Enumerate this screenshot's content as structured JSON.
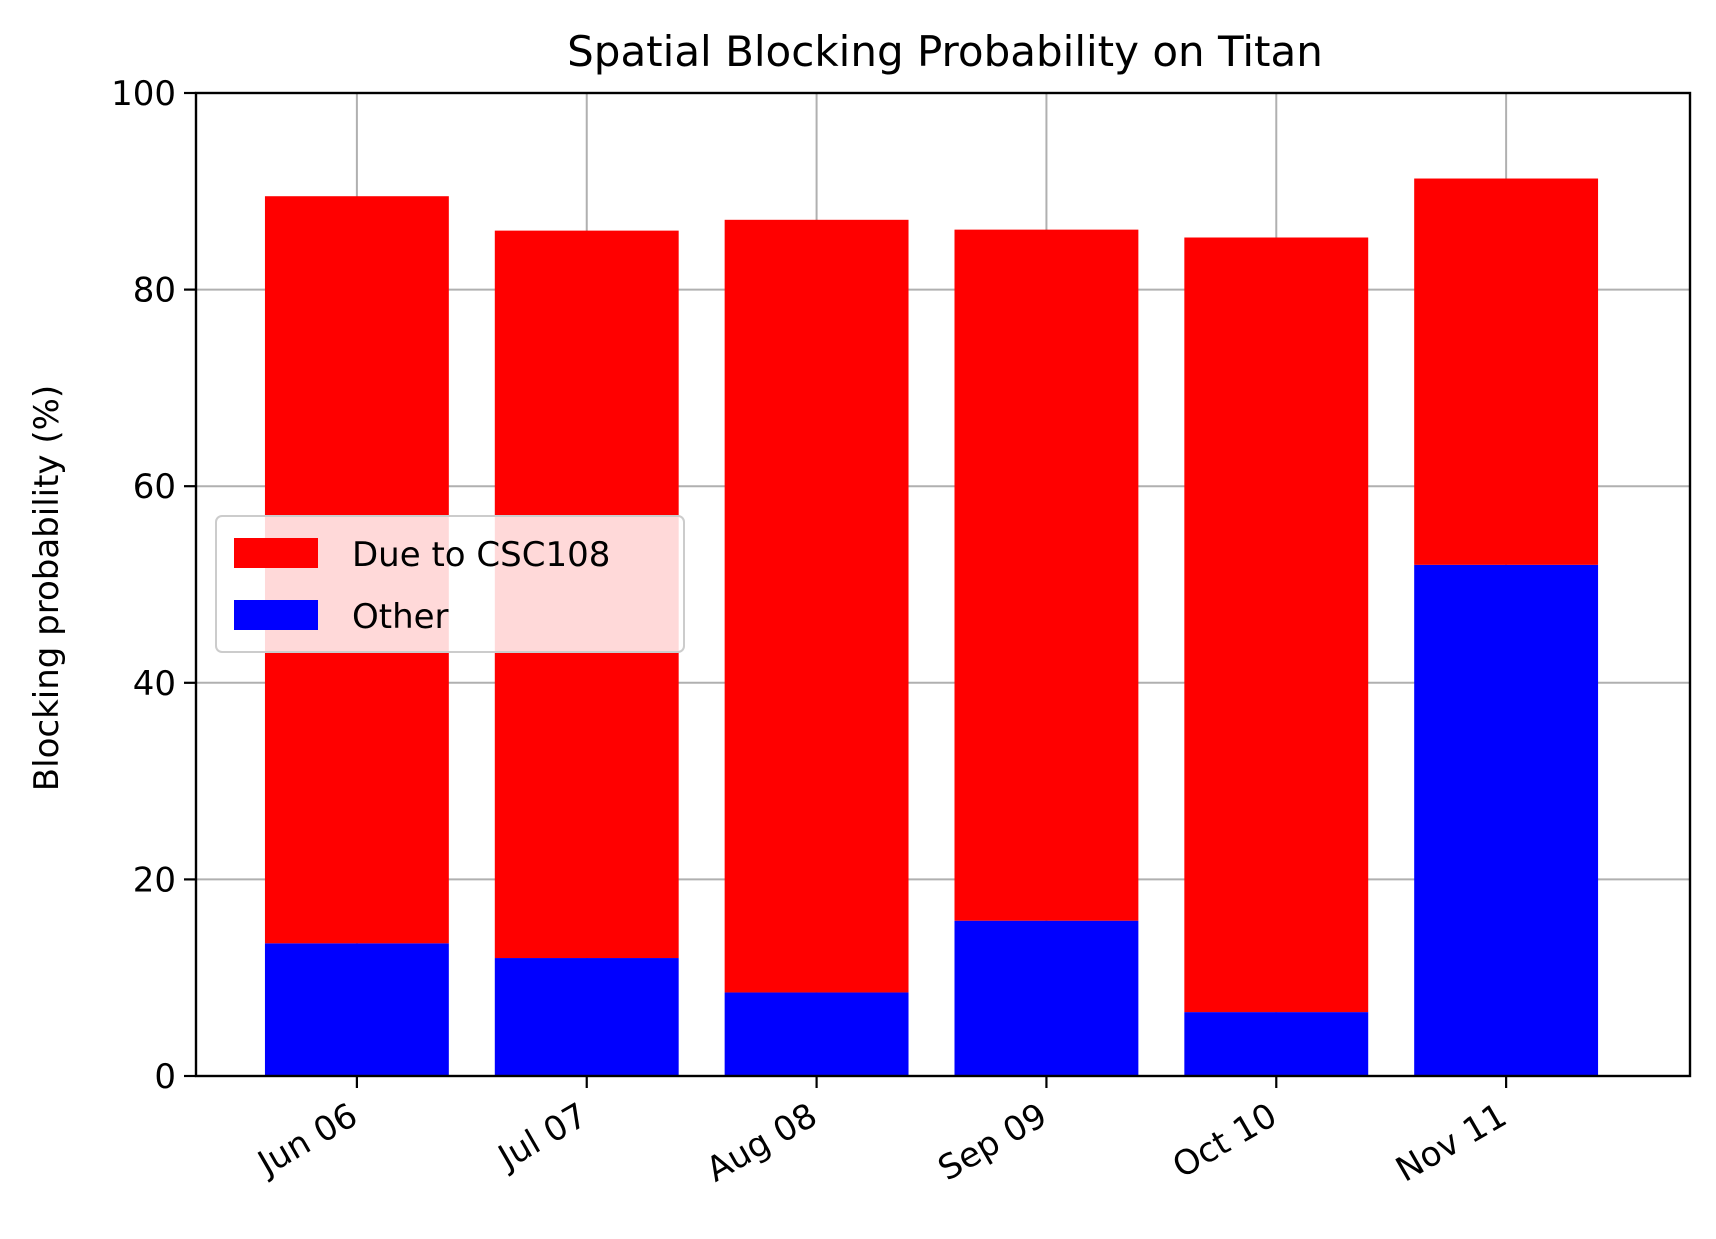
{
  "chart_data": {
    "type": "bar",
    "stacked": true,
    "title": "Spatial Blocking Probability on Titan",
    "xlabel": "",
    "ylabel": "Blocking probability (%)",
    "categories": [
      "Jun 06",
      "Jul 07",
      "Aug 08",
      "Sep 09",
      "Oct 10",
      "Nov 11"
    ],
    "series": [
      {
        "name": "Other",
        "color": "#0000ff",
        "values": [
          13.5,
          12.0,
          8.5,
          15.8,
          6.5,
          52.0
        ]
      },
      {
        "name": "Due to CSC108",
        "color": "#ff0000",
        "values": [
          76.0,
          74.0,
          78.6,
          70.3,
          78.8,
          39.3
        ]
      }
    ],
    "ylim": [
      0,
      100
    ],
    "yticks": [
      "0",
      "20",
      "40",
      "60",
      "80",
      "100"
    ],
    "grid": true,
    "legend": {
      "position": "center-left",
      "entries": [
        "Due to CSC108",
        "Other"
      ]
    }
  }
}
